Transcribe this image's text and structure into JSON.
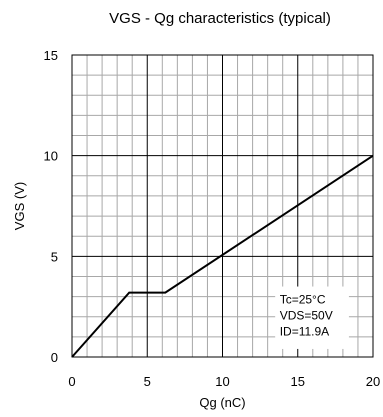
{
  "chart_data": {
    "type": "line",
    "title": "VGS - Qg characteristics (typical)",
    "xlabel": "Qg (nC)",
    "ylabel": "VGS (V)",
    "xlim": [
      0,
      20
    ],
    "ylim": [
      0,
      15
    ],
    "x_ticks": [
      "0",
      "5",
      "10",
      "15",
      "20"
    ],
    "y_ticks": [
      "0",
      "5",
      "10",
      "15"
    ],
    "grid": true,
    "series": [
      {
        "x": [
          0,
          3.8,
          6.2,
          20
        ],
        "y": [
          0,
          3.2,
          3.2,
          10.0
        ]
      }
    ],
    "annotations": [
      "Tc=25°C",
      "VDS=50V",
      "ID=11.9A"
    ]
  }
}
